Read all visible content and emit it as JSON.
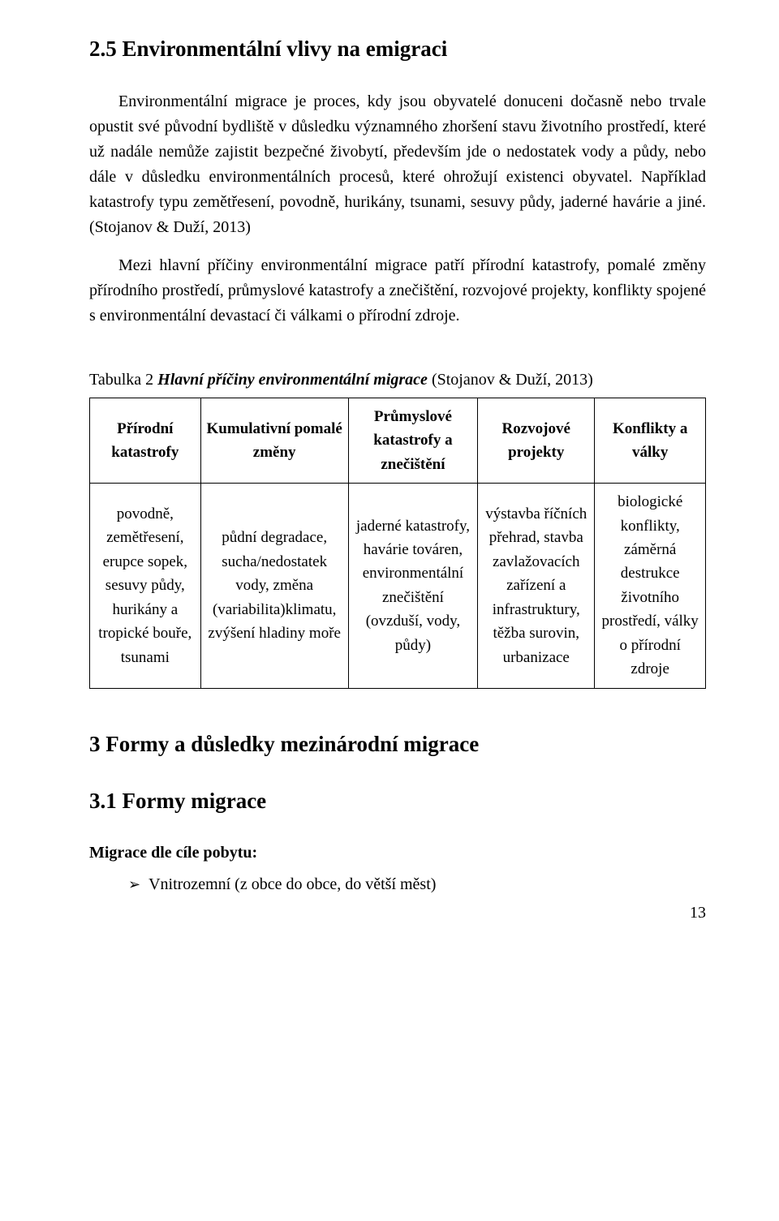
{
  "section25": {
    "heading": "2.5  Environmentální vlivy na emigraci",
    "p1": "Environmentální migrace je proces, kdy jsou obyvatelé donuceni dočasně nebo trvale opustit své původní bydliště v důsledku významného zhoršení stavu životního prostředí, které už nadále nemůže zajistit bezpečné živobytí, především jde o nedostatek vody a půdy, nebo dále v důsledku environmentálních procesů, které ohrožují existenci obyvatel. Například katastrofy typu zemětřesení, povodně, hurikány, tsunami, sesuvy půdy, jaderné havárie a jiné.(Stojanov & Duží, 2013)",
    "p2": "Mezi hlavní příčiny environmentální migrace patří přírodní katastrofy, pomalé změny přírodního prostředí, průmyslové katastrofy a znečištění, rozvojové projekty, konflikty spojené s environmentální devastací či válkami o přírodní zdroje."
  },
  "table2": {
    "caption_prefix": "Tabulka 2 ",
    "caption_title": "Hlavní příčiny environmentální migrace ",
    "caption_source": "(Stojanov & Duží, 2013)",
    "columns": [
      "Přírodní katastrofy",
      "Kumulativní pomalé změny",
      "Průmyslové katastrofy a znečištění",
      "Rozvojové projekty",
      "Konflikty a války"
    ],
    "col_widths": [
      "18%",
      "24%",
      "21%",
      "19%",
      "18%"
    ],
    "row": [
      "povodně, zemětřesení, erupce sopek, sesuvy půdy, hurikány a tropické bouře, tsunami",
      "půdní degradace, sucha/nedostatek vody, změna (variabilita)klimatu, zvýšení hladiny moře",
      "jaderné katastrofy, havárie továren, environmentální znečištění (ovzduší, vody, půdy)",
      "výstavba říčních přehrad, stavba zavlažovacích zařízení a infrastruktury, těžba surovin, urbanizace",
      "biologické konflikty, záměrná destrukce životního prostředí, války o přírodní zdroje"
    ]
  },
  "section3": {
    "heading": "3   Formy a důsledky mezinárodní migrace"
  },
  "section31": {
    "heading": "3.1  Formy migrace",
    "subhead": "Migrace dle cíle pobytu:",
    "bullet": "Vnitrozemní (z obce do obce, do větší měst)"
  },
  "pagenum": "13"
}
